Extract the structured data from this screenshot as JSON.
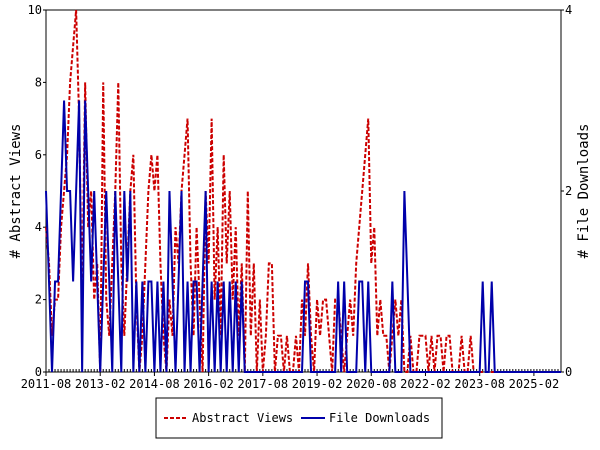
{
  "chart_data": {
    "type": "line",
    "y_label": "# Abstract Views",
    "y2_label": "# File Downloads",
    "x": [
      "2011-08",
      "2011-09",
      "2011-10",
      "2011-11",
      "2011-12",
      "2012-01",
      "2012-02",
      "2012-03",
      "2012-04",
      "2012-05",
      "2012-06",
      "2012-07",
      "2012-08",
      "2012-09",
      "2012-10",
      "2012-11",
      "2012-12",
      "2013-01",
      "2013-02",
      "2013-03",
      "2013-04",
      "2013-05",
      "2013-06",
      "2013-07",
      "2013-08",
      "2013-09",
      "2013-10",
      "2013-11",
      "2013-12",
      "2014-01",
      "2014-02",
      "2014-03",
      "2014-04",
      "2014-05",
      "2014-06",
      "2014-07",
      "2014-08",
      "2014-09",
      "2014-10",
      "2014-11",
      "2014-12",
      "2015-01",
      "2015-02",
      "2015-03",
      "2015-04",
      "2015-05",
      "2015-06",
      "2015-07",
      "2015-08",
      "2015-09",
      "2015-10",
      "2015-11",
      "2015-12",
      "2016-01",
      "2016-02",
      "2016-03",
      "2016-04",
      "2016-05",
      "2016-06",
      "2016-07",
      "2016-08",
      "2016-09",
      "2016-10",
      "2016-11",
      "2016-12",
      "2017-01",
      "2017-02",
      "2017-03",
      "2017-04",
      "2017-05",
      "2017-06",
      "2017-07",
      "2017-08",
      "2017-09",
      "2017-10",
      "2017-11",
      "2017-12",
      "2018-01",
      "2018-02",
      "2018-03",
      "2018-04",
      "2018-05",
      "2018-06",
      "2018-07",
      "2018-08",
      "2018-09",
      "2018-10",
      "2018-11",
      "2018-12",
      "2019-01",
      "2019-02",
      "2019-03",
      "2019-04",
      "2019-05",
      "2019-06",
      "2019-07",
      "2019-08",
      "2019-09",
      "2019-10",
      "2019-11",
      "2019-12",
      "2020-01",
      "2020-02",
      "2020-03",
      "2020-04",
      "2020-05",
      "2020-06",
      "2020-07",
      "2020-08",
      "2020-09",
      "2020-10",
      "2020-11",
      "2020-12",
      "2021-01",
      "2021-02",
      "2021-03",
      "2021-04",
      "2021-05",
      "2021-06",
      "2021-07",
      "2021-08",
      "2021-09",
      "2021-10",
      "2021-11",
      "2021-12",
      "2022-01",
      "2022-02",
      "2022-03",
      "2022-04",
      "2022-05",
      "2022-06",
      "2022-07",
      "2022-08",
      "2022-09",
      "2022-10",
      "2022-11",
      "2022-12",
      "2023-01",
      "2023-02",
      "2023-03",
      "2023-04",
      "2023-05",
      "2023-06",
      "2023-07",
      "2023-08",
      "2023-09",
      "2023-10",
      "2023-11",
      "2023-12",
      "2024-01",
      "2024-02",
      "2024-03",
      "2024-04",
      "2024-05",
      "2024-06",
      "2024-07",
      "2024-08",
      "2024-09",
      "2024-10",
      "2024-11",
      "2024-12",
      "2025-01",
      "2025-02",
      "2025-03",
      "2025-04",
      "2025-05",
      "2025-06",
      "2025-07",
      "2025-08",
      "2025-09",
      "2025-10",
      "2025-11"
    ],
    "xticks": [
      "2011-08",
      "2013-02",
      "2014-08",
      "2016-02",
      "2017-08",
      "2019-02",
      "2020-08",
      "2022-02",
      "2023-08",
      "2025-02"
    ],
    "series": [
      {
        "name": "Abstract Views",
        "color": "#cc0000",
        "dash": true,
        "values": [
          4,
          3,
          1,
          2,
          2,
          4,
          5,
          6,
          8,
          9,
          10,
          7,
          2,
          8,
          4,
          5,
          2,
          3,
          0,
          8,
          2,
          1,
          3,
          5,
          8,
          3,
          1,
          3,
          5,
          6,
          2,
          0,
          1,
          3,
          5,
          6,
          5,
          6,
          3,
          1,
          0,
          2,
          1,
          4,
          3,
          5,
          6,
          7,
          3,
          1,
          4,
          2,
          0,
          5,
          3,
          7,
          2,
          4,
          1,
          6,
          3,
          5,
          2,
          4,
          1,
          3,
          0,
          5,
          1,
          3,
          0,
          2,
          0,
          1,
          3,
          3,
          0,
          1,
          1,
          0,
          1,
          0,
          0,
          1,
          0,
          2,
          1,
          3,
          1,
          0,
          2,
          1,
          2,
          2,
          1,
          0,
          2,
          2,
          1,
          0,
          1,
          2,
          1,
          3,
          4,
          5,
          6,
          7,
          3,
          4,
          1,
          2,
          1,
          1,
          0,
          1,
          2,
          1,
          2,
          0,
          0,
          1,
          0,
          0,
          1,
          1,
          1,
          0,
          1,
          0,
          1,
          1,
          0,
          1,
          1,
          0,
          0,
          0,
          1,
          0,
          0,
          1,
          0,
          0,
          0,
          0,
          0,
          0,
          0,
          0,
          0,
          0,
          0,
          0,
          0,
          0,
          0,
          0,
          0,
          0,
          0,
          0,
          0,
          0,
          0,
          0,
          0,
          0,
          0,
          0,
          0,
          0
        ]
      },
      {
        "name": "File Downloads",
        "color": "#0000aa",
        "axis": "y2",
        "values": [
          2,
          1,
          0,
          1,
          1,
          2,
          3,
          2,
          2,
          1,
          2,
          3,
          0,
          3,
          2,
          1,
          2,
          1,
          0,
          1,
          2,
          1,
          0,
          2,
          1,
          0,
          2,
          1,
          2,
          0,
          1,
          0,
          1,
          0,
          1,
          1,
          0,
          1,
          0,
          1,
          0,
          2,
          1,
          0,
          1,
          2,
          0,
          1,
          0,
          1,
          1,
          0,
          1,
          2,
          0,
          1,
          0,
          1,
          0,
          1,
          0,
          1,
          0,
          1,
          0,
          1,
          0,
          0,
          0,
          0,
          0,
          0,
          0,
          0,
          0,
          0,
          0,
          0,
          0,
          0,
          0,
          0,
          0,
          0,
          0,
          0,
          1,
          1,
          0,
          0,
          0,
          0,
          0,
          0,
          0,
          0,
          0,
          1,
          0,
          1,
          0,
          0,
          0,
          0,
          1,
          1,
          0,
          1,
          0,
          0,
          0,
          0,
          0,
          0,
          0,
          1,
          0,
          0,
          0,
          2,
          1,
          0,
          0,
          0,
          0,
          0,
          0,
          0,
          0,
          0,
          0,
          0,
          0,
          0,
          0,
          0,
          0,
          0,
          0,
          0,
          0,
          0,
          0,
          0,
          0,
          1,
          0,
          0,
          1,
          0,
          0,
          0,
          0,
          0,
          0,
          0,
          0,
          0,
          0,
          0,
          0,
          0,
          0,
          0,
          0,
          0,
          0,
          0,
          0,
          0,
          0,
          0
        ]
      }
    ],
    "ylim": [
      0,
      10
    ],
    "yticks": [
      0,
      2,
      4,
      6,
      8,
      10
    ],
    "y2lim": [
      0,
      4
    ],
    "y2ticks": [
      0,
      2,
      4
    ],
    "legend": "bottom"
  }
}
